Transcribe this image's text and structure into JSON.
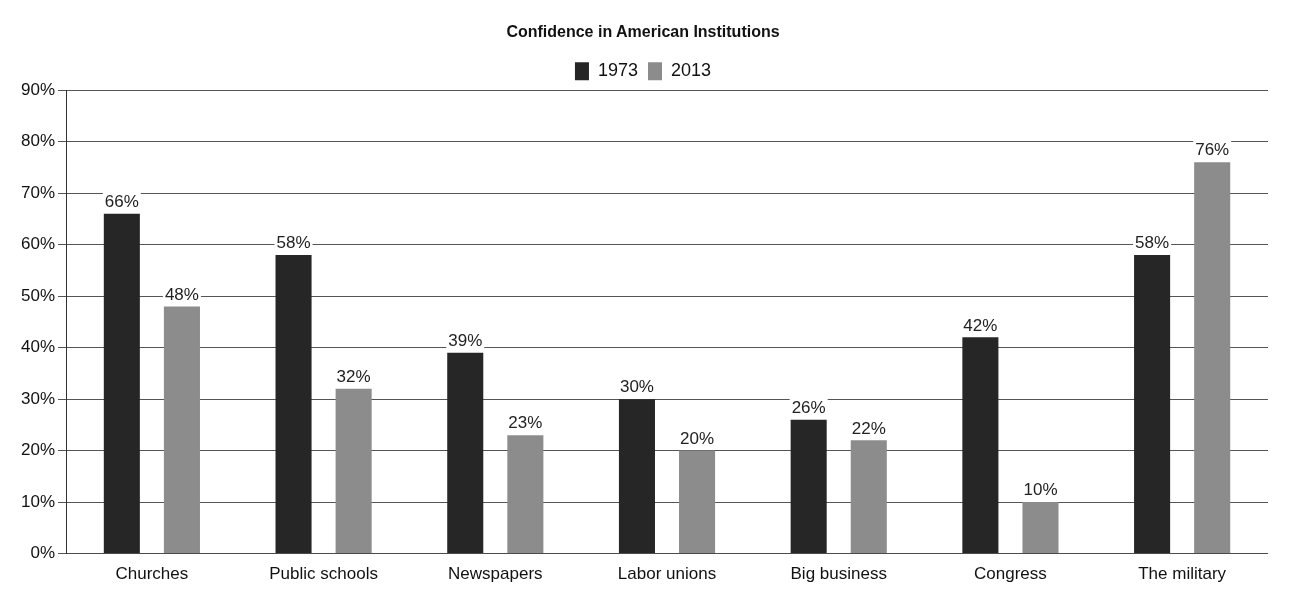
{
  "chart_data": {
    "type": "bar",
    "title": "Confidence in American Institutions",
    "categories": [
      "Churches",
      "Public schools",
      "Newspapers",
      "Labor unions",
      "Big business",
      "Congress",
      "The military"
    ],
    "series": [
      {
        "name": "1973",
        "color": "#262626",
        "values": [
          66,
          58,
          39,
          30,
          26,
          42,
          58
        ],
        "value_labels": [
          "66%",
          "58%",
          "39%",
          "30%",
          "26%",
          "42%",
          "58%"
        ]
      },
      {
        "name": "2013",
        "color": "#8c8c8c",
        "values": [
          48,
          32,
          23,
          20,
          22,
          10,
          76
        ],
        "value_labels": [
          "48%",
          "32%",
          "23%",
          "20%",
          "22%",
          "10%",
          "76%"
        ]
      }
    ],
    "ylim": [
      0,
      90
    ],
    "yticks": [
      {
        "value": 0,
        "label": "0%"
      },
      {
        "value": 10,
        "label": "10%"
      },
      {
        "value": 20,
        "label": "20%"
      },
      {
        "value": 30,
        "label": "30%"
      },
      {
        "value": 40,
        "label": "40%"
      },
      {
        "value": 50,
        "label": "50%"
      },
      {
        "value": 60,
        "label": "60%"
      },
      {
        "value": 70,
        "label": "70%"
      },
      {
        "value": 80,
        "label": "80%"
      },
      {
        "value": 90,
        "label": "90%"
      }
    ],
    "grid": "y",
    "legend": "top"
  }
}
